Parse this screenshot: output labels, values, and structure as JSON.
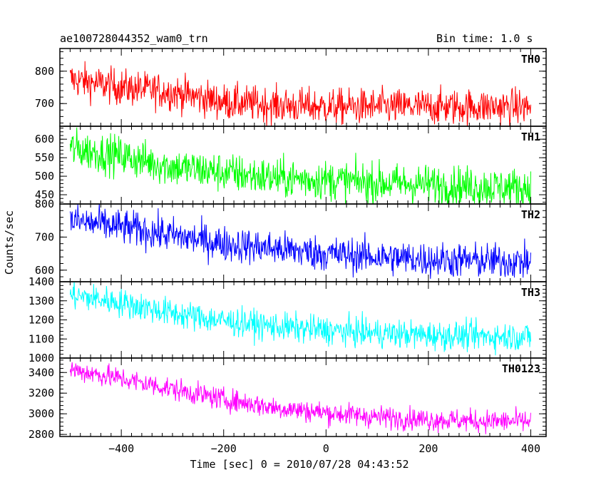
{
  "header": {
    "title": "ae100728044352_wam0_trn",
    "bin_time": "Bin time: 1.0 s"
  },
  "chart_data": {
    "type": "line",
    "xlabel": "Time [sec] 0 = 2010/07/28 04:43:52",
    "ylabel": "Counts/sec",
    "xlim": [
      -520,
      430
    ],
    "x_ticks": [
      -400,
      -200,
      0,
      200,
      400
    ],
    "x_range": [
      -500,
      400
    ],
    "bin_time": 1.0,
    "panels": [
      {
        "name": "TH0",
        "color": "#ff0000",
        "ylim": [
          630,
          870
        ],
        "yticks": [
          700,
          800
        ],
        "trend": [
          [
            -500,
            775
          ],
          [
            -400,
            750
          ],
          [
            -300,
            735
          ],
          [
            -200,
            705
          ],
          [
            -100,
            695
          ],
          [
            0,
            690
          ],
          [
            100,
            690
          ],
          [
            200,
            690
          ],
          [
            300,
            690
          ],
          [
            400,
            690
          ]
        ],
        "noise_sd": 28
      },
      {
        "name": "TH1",
        "color": "#00ff00",
        "ylim": [
          425,
          635
        ],
        "yticks": [
          450,
          500,
          550,
          600
        ],
        "trend": [
          [
            -500,
            575
          ],
          [
            -400,
            555
          ],
          [
            -300,
            525
          ],
          [
            -200,
            510
          ],
          [
            -100,
            495
          ],
          [
            0,
            490
          ],
          [
            100,
            482
          ],
          [
            200,
            478
          ],
          [
            300,
            472
          ],
          [
            400,
            468
          ]
        ],
        "noise_sd": 27
      },
      {
        "name": "TH2",
        "color": "#0000ff",
        "ylim": [
          565,
          800
        ],
        "yticks": [
          600,
          700,
          800
        ],
        "trend": [
          [
            -500,
            750
          ],
          [
            -400,
            730
          ],
          [
            -300,
            705
          ],
          [
            -200,
            680
          ],
          [
            -100,
            665
          ],
          [
            0,
            650
          ],
          [
            100,
            640
          ],
          [
            200,
            632
          ],
          [
            300,
            628
          ],
          [
            400,
            625
          ]
        ],
        "noise_sd": 27
      },
      {
        "name": "TH3",
        "color": "#00ffff",
        "ylim": [
          1000,
          1400
        ],
        "yticks": [
          1000,
          1100,
          1200,
          1300,
          1400
        ],
        "trend": [
          [
            -500,
            1330
          ],
          [
            -400,
            1290
          ],
          [
            -300,
            1235
          ],
          [
            -200,
            1195
          ],
          [
            -100,
            1165
          ],
          [
            0,
            1145
          ],
          [
            100,
            1130
          ],
          [
            200,
            1120
          ],
          [
            300,
            1115
          ],
          [
            400,
            1112
          ]
        ],
        "noise_sd": 38
      },
      {
        "name": "TH0123",
        "color": "#ff00ff",
        "ylim": [
          2780,
          3540
        ],
        "yticks": [
          2800,
          3000,
          3200,
          3400
        ],
        "trend": [
          [
            -500,
            3430
          ],
          [
            -400,
            3340
          ],
          [
            -300,
            3240
          ],
          [
            -200,
            3140
          ],
          [
            -100,
            3060
          ],
          [
            0,
            3010
          ],
          [
            100,
            2970
          ],
          [
            200,
            2945
          ],
          [
            300,
            2930
          ],
          [
            400,
            2925
          ]
        ],
        "noise_sd": 55
      }
    ]
  }
}
